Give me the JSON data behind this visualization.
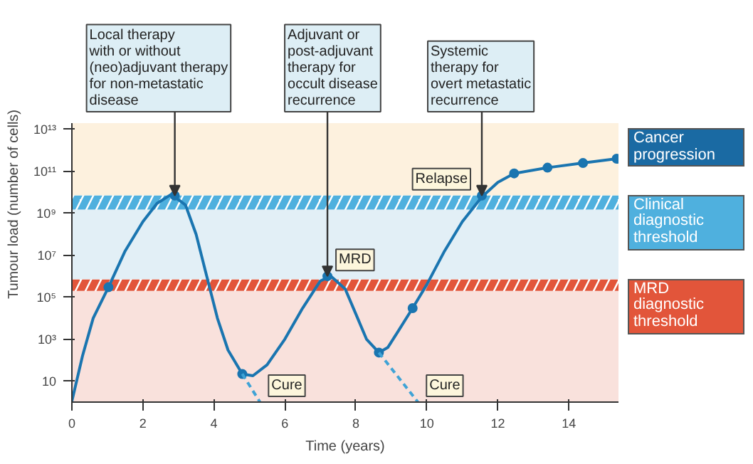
{
  "chart_data": {
    "type": "line",
    "xlabel": "Time (years)",
    "ylabel": "Tumour load (number of cells)",
    "xlim": [
      0,
      15.4
    ],
    "ylim": [
      1,
      20000000000000
    ],
    "log": "y",
    "grid": false,
    "xticks": [
      0,
      2,
      4,
      6,
      8,
      10,
      12,
      14
    ],
    "yticks": [
      {
        "value": 10,
        "label": "10"
      },
      {
        "value": 1000,
        "label": "10³"
      },
      {
        "value": 100000,
        "label": "10⁵"
      },
      {
        "value": 10000000,
        "label": "10⁷"
      },
      {
        "value": 1000000000,
        "label": "10⁹"
      },
      {
        "value": 100000000000,
        "label": "10¹¹"
      },
      {
        "value": 10000000000000,
        "label": "10¹³"
      }
    ],
    "bands": [
      {
        "axis": "y",
        "from": 7000000000,
        "to": 20000000000000,
        "color": "#fdf1de"
      },
      {
        "axis": "y",
        "from": 700000,
        "to": 1500000000,
        "color": "#e2eff6"
      },
      {
        "axis": "y",
        "from": 1,
        "to": 200000,
        "color": "#f9e1dc"
      },
      {
        "axis": "y",
        "from": 1500000000,
        "to": 7000000000,
        "color": "#4fb0de",
        "label": "Clinical\ndiagnostic\nthreshold"
      },
      {
        "axis": "y",
        "from": 200000,
        "to": 700000,
        "color": "#e2553a",
        "label": "MRD\ndiagnostic\nthreshold"
      }
    ],
    "series": [
      {
        "color": "#1a75b0",
        "marker": "none",
        "line_style": "solid",
        "x": [
          0,
          0.3,
          0.6,
          1.03,
          1.5,
          2.0,
          2.4,
          2.8,
          3.2,
          3.5,
          3.8,
          4.1,
          4.4,
          4.8,
          5.1,
          5.5,
          6.0,
          6.5,
          7.0,
          7.3,
          7.7,
          8.0,
          8.3,
          8.65,
          8.9,
          9.2,
          9.6,
          10.0,
          10.5,
          11.0,
          11.55,
          12.0,
          12.46,
          13.4,
          14.4,
          15.35
        ],
        "values": [
          1.1,
          160,
          10000,
          300000,
          16000000,
          400000000,
          3000000000,
          8000000000,
          2500000000,
          100000000,
          1000000,
          10000,
          300,
          22,
          18,
          60,
          1000,
          30000,
          600000,
          1000000,
          250000,
          16000,
          1000,
          230,
          400,
          2500,
          30000,
          400000,
          16000000,
          400000000,
          6000000000,
          30000000000,
          80000000000,
          150000000000,
          250000000000,
          400000000000
        ]
      },
      {
        "type": "scatter",
        "color": "#1a75b0",
        "marker": "circle",
        "x": [
          1.03,
          2.9,
          4.8,
          7.2,
          8.65,
          9.6,
          11.55,
          12.46,
          13.4,
          14.4,
          15.35
        ],
        "values": [
          300000,
          7000000000,
          22,
          1000000,
          230,
          30000,
          7000000000,
          80000000000,
          150000000000,
          250000000000,
          400000000000
        ]
      },
      {
        "color": "#3fa3d6",
        "marker": "none",
        "line_style": "dashed",
        "x": [
          4.8,
          5.3
        ],
        "values": [
          22,
          1
        ]
      },
      {
        "color": "#3fa3d6",
        "marker": "none",
        "line_style": "dashed",
        "x": [
          8.65,
          9.75
        ],
        "values": [
          230,
          1
        ]
      }
    ],
    "annotations": [
      {
        "text": "Local therapy\nwith or without\n(neo)adjuvant therapy\nfor non-metastatic\ndisease",
        "x": 2.9,
        "y": 7000000000
      },
      {
        "text": "Adjuvant or\npost-adjuvant\ntherapy for\noccult disease\nrecurrence",
        "x": 7.2,
        "y": 1000000
      },
      {
        "text": "Systemic\ntherapy for\novert metastatic\nrecurrence",
        "x": 11.55,
        "y": 7000000000
      },
      {
        "text": "Relapse",
        "x": 11.55,
        "y": 7000000000
      },
      {
        "text": "MRD",
        "x": 7.2,
        "y": 1000000
      },
      {
        "text": "Cure",
        "x": 5.3,
        "y": 1
      },
      {
        "text": "Cure",
        "x": 9.75,
        "y": 1
      },
      "Cancer progression"
    ]
  }
}
